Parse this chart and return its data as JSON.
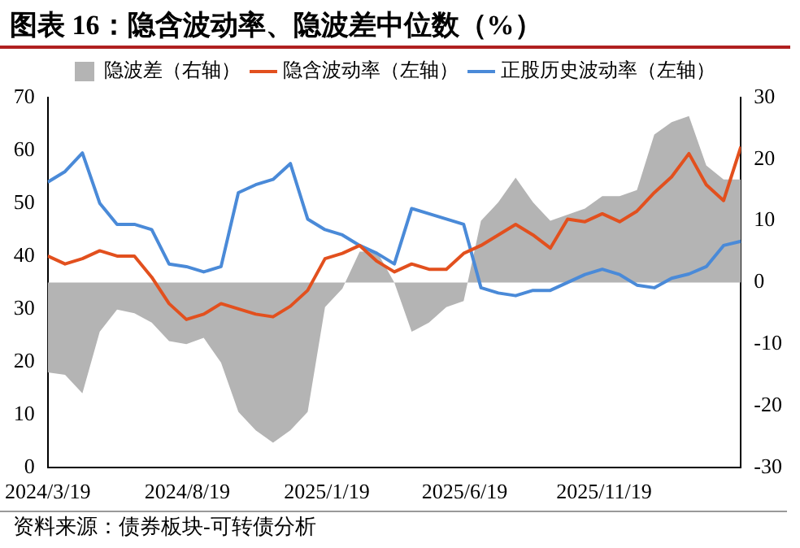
{
  "chart_data": {
    "type": "line",
    "title": "图表 16：隐含波动率、隐波差中位数（%）",
    "annotations": [
      "资料来源：债券板块-可转债分析"
    ],
    "x": [
      "2024-03-19",
      "2024-04-07",
      "2024-04-26",
      "2024-05-15",
      "2024-06-03",
      "2024-06-22",
      "2024-07-11",
      "2024-07-30",
      "2024-08-18",
      "2024-09-06",
      "2024-09-25",
      "2024-10-14",
      "2024-11-02",
      "2024-11-21",
      "2024-12-10",
      "2024-12-29",
      "2025-01-17",
      "2025-02-05",
      "2025-02-24",
      "2025-03-15",
      "2025-04-03",
      "2025-04-22",
      "2025-05-11",
      "2025-05-30",
      "2025-06-18",
      "2025-07-07",
      "2025-07-26",
      "2025-08-14",
      "2025-09-02",
      "2025-09-21",
      "2025-10-10",
      "2025-10-29",
      "2025-11-17",
      "2025-12-06",
      "2025-12-25",
      "2026-01-13",
      "2026-02-01",
      "2026-02-20",
      "2026-03-11",
      "2026-03-30",
      "2026-04-18"
    ],
    "series": [
      {
        "name": "隐波差（右轴）",
        "type": "area",
        "axis": "y2",
        "color": "#b4b4b4",
        "values": [
          -14.6,
          -15,
          -18,
          -8,
          -4.4,
          -5,
          -6.5,
          -9.5,
          -10,
          -9,
          -13,
          -21,
          -24,
          -26,
          -24,
          -21,
          -4,
          -1,
          5,
          5,
          0,
          -8,
          -6.5,
          -4,
          -3,
          10,
          13,
          17,
          13,
          10,
          11,
          12,
          14,
          14,
          15,
          24,
          26,
          27,
          19,
          16.7,
          16.7
        ]
      },
      {
        "name": "隐含波动率（左轴）",
        "color": "#e2501e",
        "values": [
          40,
          38.5,
          39.5,
          41,
          40,
          40,
          36,
          31,
          28,
          29,
          31,
          30,
          29,
          28.5,
          30.5,
          33.5,
          39.5,
          40.5,
          42,
          39,
          37,
          38.5,
          37.5,
          37.5,
          40.5,
          42,
          44,
          46,
          44,
          41.5,
          47,
          46.5,
          48,
          46.5,
          48.5,
          52,
          55,
          59.4,
          53.5,
          50.5,
          60.7
        ]
      },
      {
        "name": "正股历史波动率（左轴）",
        "color": "#4a8ad8",
        "values": [
          54,
          56,
          59.5,
          50,
          46,
          46,
          45,
          38.5,
          38,
          37,
          38,
          52,
          53.5,
          54.5,
          57.5,
          47,
          45,
          44,
          42,
          40.5,
          38.5,
          49,
          48,
          47,
          46,
          34,
          33,
          32.5,
          33.5,
          33.5,
          35,
          36.5,
          37.5,
          36.5,
          34.5,
          34,
          35.8,
          36.6,
          38,
          42,
          42.8
        ]
      }
    ],
    "xlim": [
      "2024-03-19",
      "2026-04-18"
    ],
    "xticks": [
      {
        "value": "2024-03-19",
        "label": "2024/3/19"
      },
      {
        "value": "2024-08-19",
        "label": "2024/8/19"
      },
      {
        "value": "2025-01-19",
        "label": "2025/1/19"
      },
      {
        "value": "2025-06-19",
        "label": "2025/6/19"
      },
      {
        "value": "2025-11-19",
        "label": "2025/11/19"
      }
    ],
    "ylim": [
      0,
      70
    ],
    "yticks": [
      0,
      10,
      20,
      30,
      40,
      50,
      60,
      70
    ],
    "y2lim": [
      -30,
      30
    ],
    "y2ticks": [
      -30,
      -20,
      -10,
      0,
      10,
      20,
      30
    ],
    "grid": false,
    "legend": "top",
    "marker": "none",
    "line_style": "solid"
  }
}
